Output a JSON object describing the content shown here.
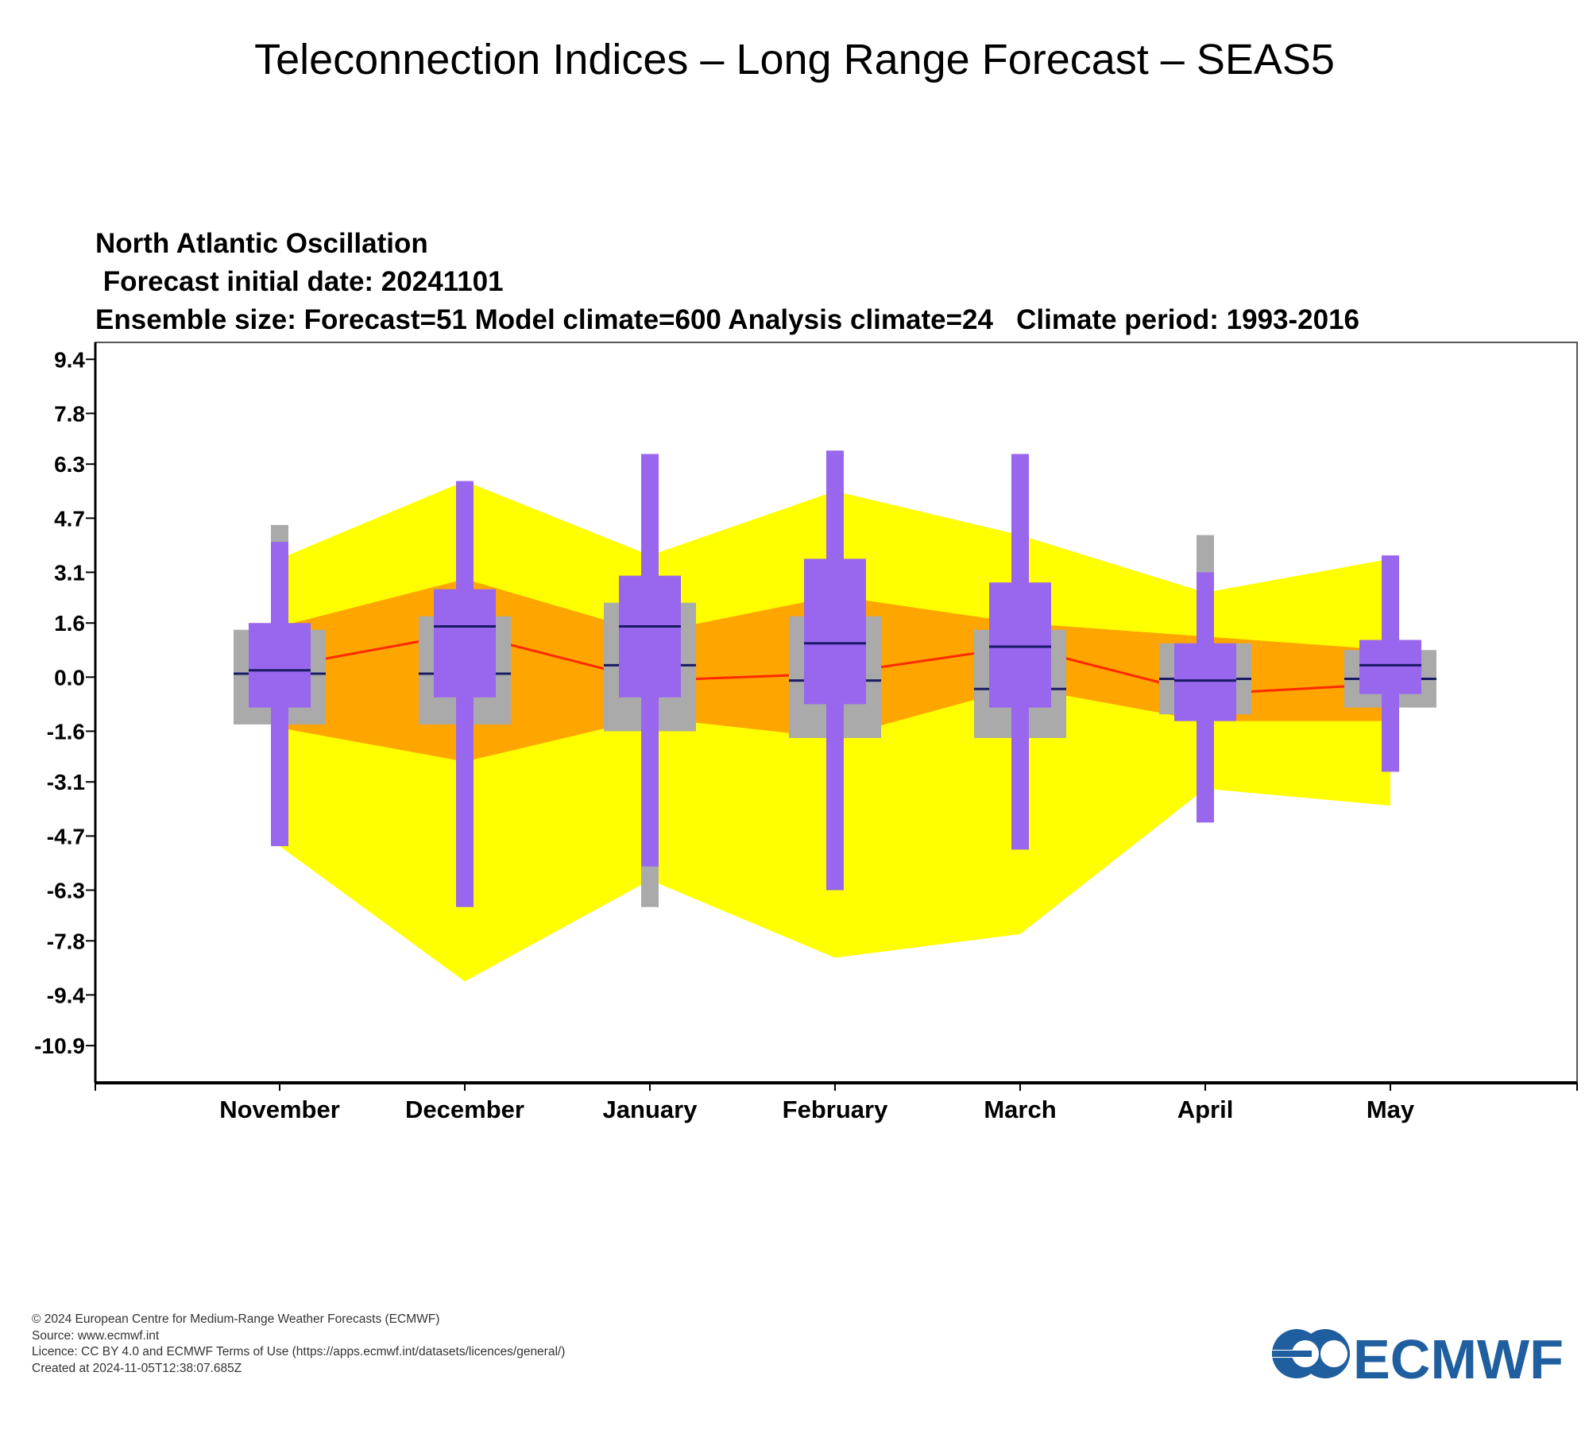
{
  "page_title": "Teleconnection Indices – Long Range Forecast – SEAS5",
  "chart_data": {
    "type": "box",
    "title_lines": [
      "North Atlantic Oscillation",
      " Forecast initial date: 20241101",
      "Ensemble size: Forecast=51 Model climate=600 Analysis climate=24   Climate period: 1993-2016"
    ],
    "yticks": [
      "9.4",
      "7.8",
      "6.3",
      "4.7",
      "3.1",
      "1.6",
      "0.0",
      "-1.6",
      "-3.1",
      "-4.7",
      "-6.3",
      "-7.8",
      "-9.4",
      "-10.9"
    ],
    "ylim": [
      -12.0,
      9.9
    ],
    "categories": [
      "November",
      "December",
      "January",
      "February",
      "March",
      "April",
      "May"
    ],
    "colors": {
      "climate_outer": "#ffff00",
      "climate_inner": "#ffa500",
      "climate_median": "#ff2a00",
      "model_climate_box": "#aaaaaa",
      "forecast_box": "#9966ee",
      "median_line": "#1a1a66"
    },
    "analysis_climate": {
      "upper_outer": [
        3.5,
        5.8,
        3.6,
        5.5,
        4.2,
        2.5,
        3.5
      ],
      "upper_inner": [
        1.5,
        2.9,
        1.3,
        2.4,
        1.6,
        1.2,
        0.8
      ],
      "median": [
        0.3,
        1.3,
        -0.1,
        0.1,
        0.9,
        -0.5,
        -0.2
      ],
      "lower_inner": [
        -1.5,
        -2.5,
        -1.2,
        -1.8,
        -0.3,
        -1.3,
        -1.3
      ],
      "lower_outer": [
        -5.0,
        -9.0,
        -6.0,
        -8.3,
        -7.6,
        -3.3,
        -3.8
      ]
    },
    "model_climate": {
      "max": [
        4.5,
        4.7,
        5.5,
        6.0,
        6.3,
        4.2,
        3.0
      ],
      "q75": [
        1.4,
        1.8,
        2.2,
        1.8,
        1.4,
        1.0,
        0.8
      ],
      "median": [
        0.1,
        0.1,
        0.35,
        -0.1,
        -0.35,
        -0.05,
        -0.05
      ],
      "q25": [
        -1.4,
        -1.4,
        -1.6,
        -1.8,
        -1.8,
        -1.1,
        -0.9
      ],
      "min": [
        -4.4,
        -6.0,
        -6.8,
        -6.3,
        -5.1,
        -3.7,
        -2.8
      ]
    },
    "forecast": {
      "max": [
        4.0,
        5.8,
        6.6,
        6.7,
        6.6,
        3.1,
        3.6
      ],
      "q75": [
        1.6,
        2.6,
        3.0,
        3.5,
        2.8,
        1.0,
        1.1
      ],
      "median": [
        0.2,
        1.5,
        1.5,
        1.0,
        0.9,
        -0.1,
        0.35
      ],
      "q25": [
        -0.9,
        -0.6,
        -0.6,
        -0.8,
        -0.9,
        -1.3,
        -0.5
      ],
      "min": [
        -5.0,
        -6.8,
        -5.6,
        -6.3,
        -5.1,
        -4.3,
        -2.8
      ]
    }
  },
  "footer": {
    "line1": "© 2024 European Centre for Medium-Range Weather Forecasts (ECMWF)",
    "line2": "Source: www.ecmwf.int",
    "line3": "Licence: CC BY 4.0 and ECMWF Terms of Use (https://apps.ecmwf.int/datasets/licences/general/)",
    "line4": "Created at 2024-11-05T12:38:07.685Z"
  },
  "logo": {
    "text": "ECMWF"
  }
}
